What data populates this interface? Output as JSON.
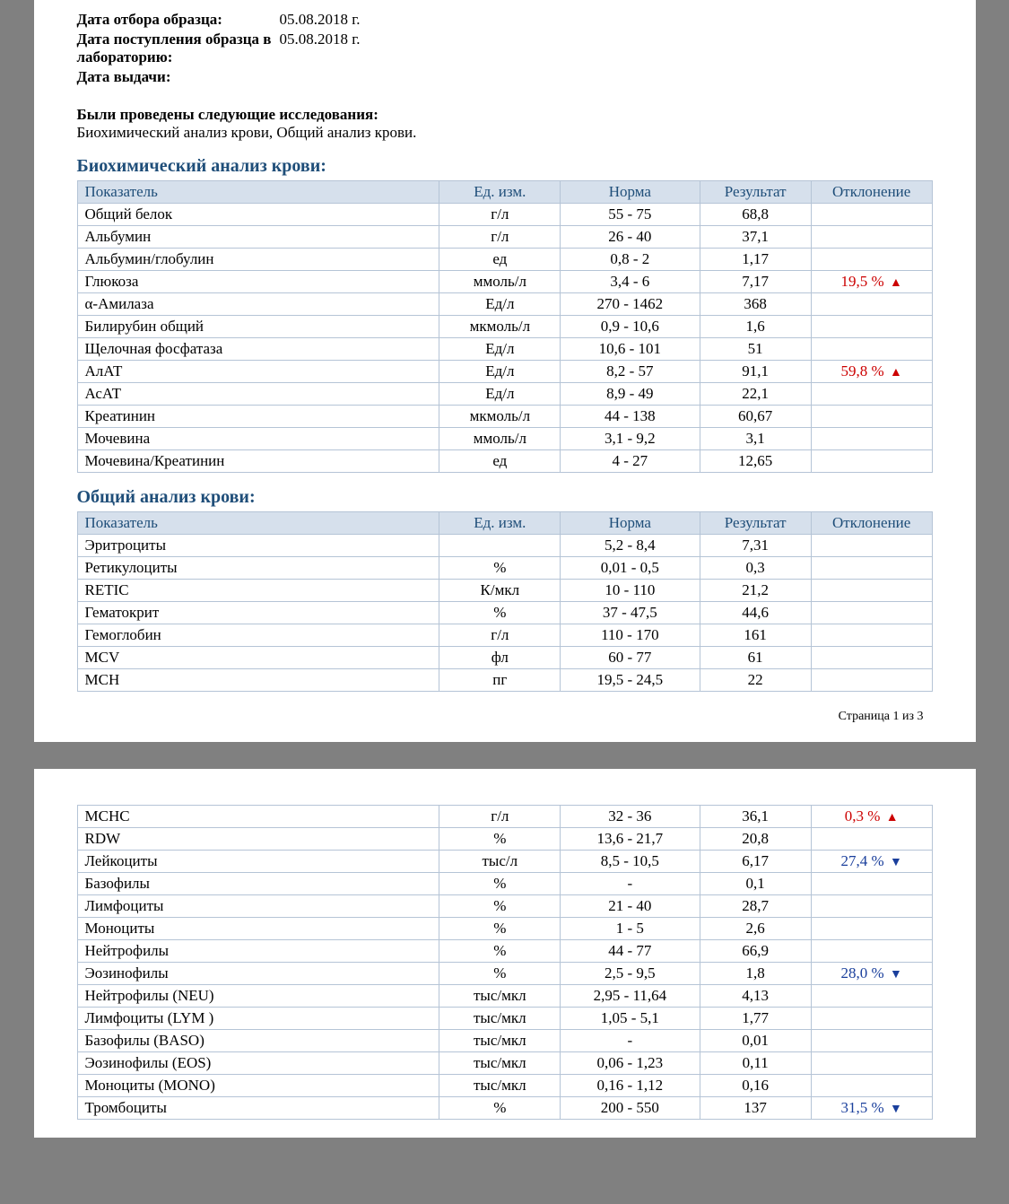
{
  "meta": {
    "sample_date_label": "Дата отбора образца:",
    "sample_date_value": "05.08.2018  г.",
    "receipt_date_label": "Дата поступления образца в лабораторию:",
    "receipt_date_value": "05.08.2018  г.",
    "issue_date_label": "Дата выдачи:",
    "issue_date_value": ""
  },
  "intro": {
    "lead": "Были проведены следующие исследования:",
    "text": "Биохимический анализ крови, Общий анализ крови."
  },
  "headers": {
    "indicator": "Показатель",
    "unit": "Ед. изм.",
    "norm": "Норма",
    "result": "Результат",
    "deviation": "Отклонение"
  },
  "biochem": {
    "title": "Биохимический анализ крови:",
    "rows": [
      {
        "name": "Общий белок",
        "unit": "г/л",
        "norm": "55 - 75",
        "res": "68,8",
        "dev": "",
        "dir": ""
      },
      {
        "name": "Альбумин",
        "unit": "г/л",
        "norm": "26 - 40",
        "res": "37,1",
        "dev": "",
        "dir": ""
      },
      {
        "name": "Альбумин/глобулин",
        "unit": "ед",
        "norm": "0,8 - 2",
        "res": "1,17",
        "dev": "",
        "dir": ""
      },
      {
        "name": "Глюкоза",
        "unit": "ммоль/л",
        "norm": "3,4 - 6",
        "res": "7,17",
        "dev": "19,5 %",
        "dir": "up"
      },
      {
        "name": "α-Амилаза",
        "unit": "Ед/л",
        "norm": "270 - 1462",
        "res": "368",
        "dev": "",
        "dir": ""
      },
      {
        "name": "Билирубин общий",
        "unit": "мкмоль/л",
        "norm": "0,9 - 10,6",
        "res": "1,6",
        "dev": "",
        "dir": ""
      },
      {
        "name": "Щелочная фосфатаза",
        "unit": "Ед/л",
        "norm": "10,6 - 101",
        "res": "51",
        "dev": "",
        "dir": ""
      },
      {
        "name": "АлАТ",
        "unit": "Ед/л",
        "norm": "8,2 - 57",
        "res": "91,1",
        "dev": "59,8 %",
        "dir": "up"
      },
      {
        "name": "АсАТ",
        "unit": "Ед/л",
        "norm": "8,9 - 49",
        "res": "22,1",
        "dev": "",
        "dir": ""
      },
      {
        "name": "Креатинин",
        "unit": "мкмоль/л",
        "norm": "44 - 138",
        "res": "60,67",
        "dev": "",
        "dir": ""
      },
      {
        "name": "Мочевина",
        "unit": "ммоль/л",
        "norm": "3,1 - 9,2",
        "res": "3,1",
        "dev": "",
        "dir": ""
      },
      {
        "name": "Мочевина/Креатинин",
        "unit": "ед",
        "norm": "4 - 27",
        "res": "12,65",
        "dev": "",
        "dir": ""
      }
    ]
  },
  "cbc": {
    "title": "Общий анализ крови:",
    "rows_p1": [
      {
        "name": "Эритроциты",
        "unit": "",
        "norm": "5,2 - 8,4",
        "res": "7,31",
        "dev": "",
        "dir": ""
      },
      {
        "name": "Ретикулоциты",
        "unit": "%",
        "norm": "0,01 - 0,5",
        "res": "0,3",
        "dev": "",
        "dir": ""
      },
      {
        "name": "RETIC",
        "unit": "К/мкл",
        "norm": "10 - 110",
        "res": "21,2",
        "dev": "",
        "dir": ""
      },
      {
        "name": "Гематокрит",
        "unit": "%",
        "norm": "37 - 47,5",
        "res": "44,6",
        "dev": "",
        "dir": ""
      },
      {
        "name": "Гемоглобин",
        "unit": "г/л",
        "norm": "110 - 170",
        "res": "161",
        "dev": "",
        "dir": ""
      },
      {
        "name": "MCV",
        "unit": "фл",
        "norm": "60 - 77",
        "res": "61",
        "dev": "",
        "dir": ""
      },
      {
        "name": "MCH",
        "unit": "пг",
        "norm": "19,5 - 24,5",
        "res": "22",
        "dev": "",
        "dir": ""
      }
    ],
    "rows_p2": [
      {
        "name": "MCHC",
        "unit": "г/л",
        "norm": "32 - 36",
        "res": "36,1",
        "dev": "0,3 %",
        "dir": "up"
      },
      {
        "name": "RDW",
        "unit": "%",
        "norm": "13,6 - 21,7",
        "res": "20,8",
        "dev": "",
        "dir": ""
      },
      {
        "name": "Лейкоциты",
        "unit": "тыс/л",
        "norm": "8,5 - 10,5",
        "res": "6,17",
        "dev": "27,4 %",
        "dir": "down"
      },
      {
        "name": "Базофилы",
        "unit": "%",
        "norm": "-",
        "res": "0,1",
        "dev": "",
        "dir": ""
      },
      {
        "name": "Лимфоциты",
        "unit": "%",
        "norm": "21 - 40",
        "res": "28,7",
        "dev": "",
        "dir": ""
      },
      {
        "name": "Моноциты",
        "unit": "%",
        "norm": "1 - 5",
        "res": "2,6",
        "dev": "",
        "dir": ""
      },
      {
        "name": "Нейтрофилы",
        "unit": "%",
        "norm": "44 - 77",
        "res": "66,9",
        "dev": "",
        "dir": ""
      },
      {
        "name": "Эозинофилы",
        "unit": "%",
        "norm": "2,5 - 9,5",
        "res": "1,8",
        "dev": "28,0 %",
        "dir": "down"
      },
      {
        "name": "Нейтрофилы (NEU)",
        "unit": "тыс/мкл",
        "norm": "2,95 - 11,64",
        "res": "4,13",
        "dev": "",
        "dir": ""
      },
      {
        "name": "Лимфоциты (LYM )",
        "unit": "тыс/мкл",
        "norm": "1,05 - 5,1",
        "res": "1,77",
        "dev": "",
        "dir": ""
      },
      {
        "name": "Базофилы (BASO)",
        "unit": "тыс/мкл",
        "norm": "-",
        "res": "0,01",
        "dev": "",
        "dir": ""
      },
      {
        "name": "Эозинофилы (EOS)",
        "unit": "тыс/мкл",
        "norm": "0,06 - 1,23",
        "res": "0,11",
        "dev": "",
        "dir": ""
      },
      {
        "name": "Моноциты (MONO)",
        "unit": "тыс/мкл",
        "norm": "0,16 - 1,12",
        "res": "0,16",
        "dev": "",
        "dir": ""
      },
      {
        "name": "Тромбоциты",
        "unit": "%",
        "norm": "200 - 550",
        "res": "137",
        "dev": "31,5 %",
        "dir": "down"
      }
    ]
  },
  "page_num": "Страница 1 из 3",
  "arrows": {
    "up": "▲",
    "down": "▼"
  },
  "colors": {
    "heading": "#1f4e79",
    "header_bg": "#d6e0ec",
    "border": "#b5c4d6",
    "dev_up": "#cc0000",
    "dev_down": "#1a3f9c",
    "page_bg": "#ffffff",
    "gutter": "#808080"
  }
}
